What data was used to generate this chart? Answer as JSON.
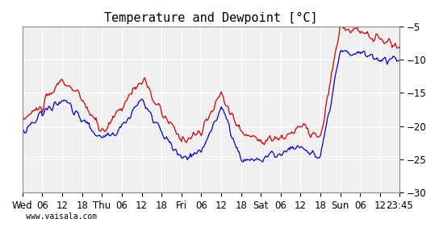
{
  "title": "Temperature and Dewpoint [°C]",
  "watermark": "www.vaisala.com",
  "x_tick_labels": [
    "Wed",
    "06",
    "12",
    "18",
    "Thu",
    "06",
    "12",
    "18",
    "Fri",
    "06",
    "12",
    "18",
    "Sat",
    "06",
    "12",
    "18",
    "Sun",
    "06",
    "12",
    "23:45"
  ],
  "y_ticks": [
    -30,
    -25,
    -20,
    -15,
    -10,
    -5
  ],
  "ylim": [
    -30,
    -5
  ],
  "bg_color": "#ffffff",
  "plot_bg_color": "#f0f0f0",
  "temp_color": "#cc0000",
  "dewp_color": "#0000cc",
  "grid_color": "#ffffff",
  "title_fontsize": 11,
  "tick_fontsize": 8.5,
  "linewidth": 0.9,
  "n_points": 400
}
